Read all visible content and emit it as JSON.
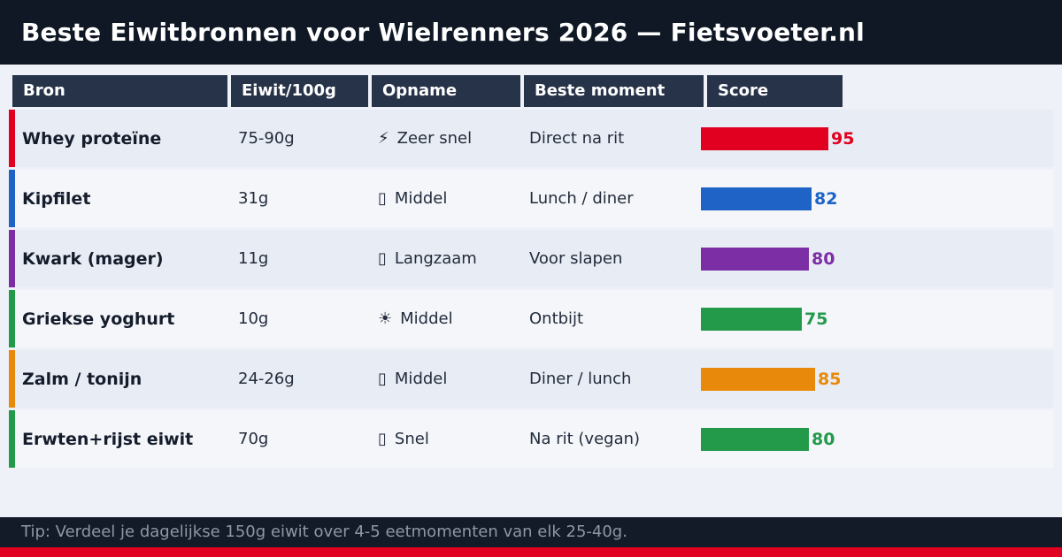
{
  "title": "Beste Eiwitbronnen voor Wielrenners 2026 — Fietsvoeter.nl",
  "footer": {
    "tip": "Tip: Verdeel je dagelijkse 150g eiwit over 4-5 eetmomenten van elk 25-40g."
  },
  "colors": {
    "background": "#101826",
    "panel": "#eef1f8",
    "header_cell": "#273349",
    "row_odd": "#e8ecf4",
    "row_even": "#f4f6fa",
    "bottom_strip": "#e1001f"
  },
  "chart_data": {
    "type": "table",
    "title": "Beste Eiwitbronnen voor Wielrenners 2026 — Fietsvoeter.nl",
    "columns": [
      "Bron",
      "Eiwit/100g",
      "Opname",
      "Beste moment",
      "Score"
    ],
    "score_range": [
      0,
      100
    ],
    "rows": [
      {
        "bron": "Whey proteïne",
        "eiwit": "75-90g",
        "opname_icon": "⚡",
        "opname": "Zeer snel",
        "moment": "Direct na rit",
        "score": 95,
        "color": "#e1001f"
      },
      {
        "bron": "Kipfilet",
        "eiwit": "31g",
        "opname_icon": "▯",
        "opname": "Middel",
        "moment": "Lunch / diner",
        "score": 82,
        "color": "#1e63c5"
      },
      {
        "bron": "Kwark (mager)",
        "eiwit": "11g",
        "opname_icon": "▯",
        "opname": "Langzaam",
        "moment": "Voor slapen",
        "score": 80,
        "color": "#7c2ea5"
      },
      {
        "bron": "Griekse yoghurt",
        "eiwit": "10g",
        "opname_icon": "☀",
        "opname": "Middel",
        "moment": "Ontbijt",
        "score": 75,
        "color": "#23994a"
      },
      {
        "bron": "Zalm / tonijn",
        "eiwit": "24-26g",
        "opname_icon": "▯",
        "opname": "Middel",
        "moment": "Diner / lunch",
        "score": 85,
        "color": "#e8890b"
      },
      {
        "bron": "Erwten+rijst eiwit",
        "eiwit": "70g",
        "opname_icon": "▯",
        "opname": "Snel",
        "moment": "Na rit (vegan)",
        "score": 80,
        "color": "#23994a"
      }
    ]
  }
}
